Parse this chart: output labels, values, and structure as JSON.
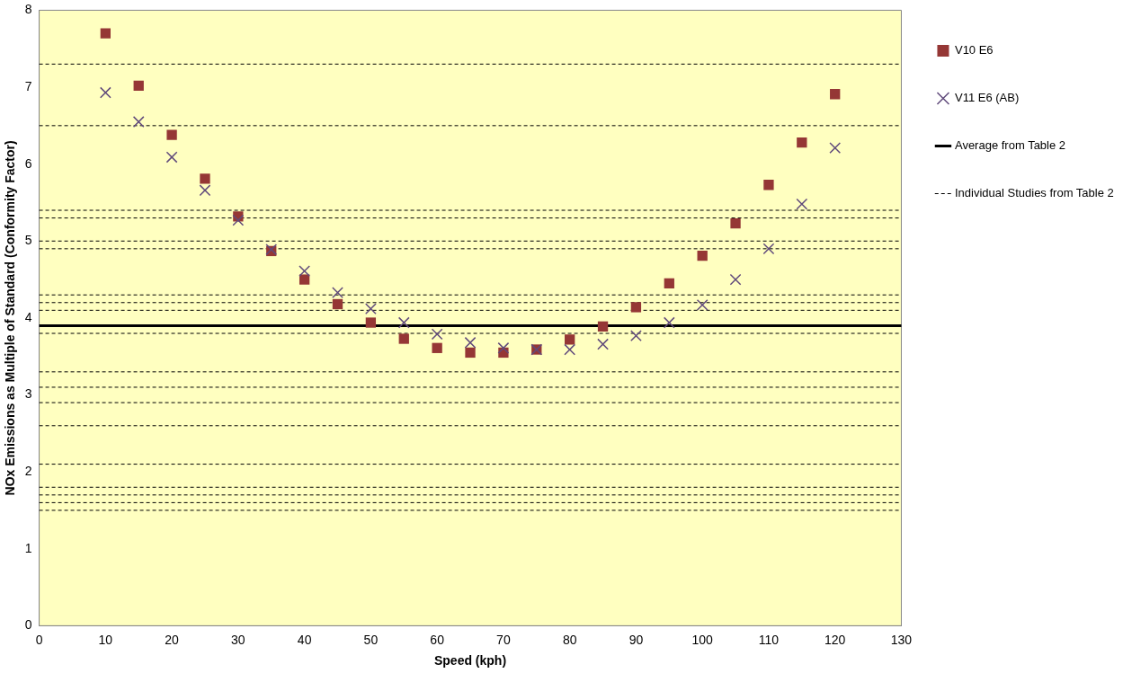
{
  "chart_data": {
    "type": "scatter",
    "xlabel": "Speed (kph)",
    "ylabel": "NOx Emissions as Multiple of Standard (Conformity Factor)",
    "x": [
      10,
      15,
      20,
      25,
      30,
      35,
      40,
      45,
      50,
      55,
      60,
      65,
      70,
      75,
      80,
      85,
      90,
      95,
      100,
      105,
      110,
      115,
      120
    ],
    "series": [
      {
        "name": "V10 E6",
        "color": "#953735",
        "marker": "square",
        "values": [
          7.7,
          7.02,
          6.38,
          5.81,
          5.32,
          4.87,
          4.5,
          4.18,
          3.94,
          3.73,
          3.61,
          3.55,
          3.55,
          3.59,
          3.72,
          3.89,
          4.14,
          4.45,
          4.81,
          5.23,
          5.73,
          6.28,
          6.91
        ]
      },
      {
        "name": "V11 E6 (AB)",
        "color": "#604a7b",
        "marker": "cross",
        "values": [
          6.93,
          6.55,
          6.09,
          5.66,
          5.27,
          4.89,
          4.61,
          4.33,
          4.12,
          3.94,
          3.79,
          3.68,
          3.61,
          3.59,
          3.59,
          3.66,
          3.77,
          3.94,
          4.17,
          4.5,
          4.9,
          5.48,
          6.21
        ]
      }
    ],
    "xlim": [
      0,
      130
    ],
    "xticks": [
      0,
      10,
      20,
      30,
      40,
      50,
      60,
      70,
      80,
      90,
      100,
      110,
      120,
      130
    ],
    "ylim": [
      0,
      8
    ],
    "yticks": [
      0,
      1,
      2,
      3,
      4,
      5,
      6,
      7,
      8
    ],
    "ref_lines": [
      {
        "axis": "y",
        "value": 3.9,
        "label": "Average from Table 2",
        "color": "#000000",
        "line_style": "solid"
      },
      {
        "axis": "y",
        "value": 7.3,
        "label": "Individual Studies from Table 2",
        "color": "#000000",
        "line_style": "dashed"
      },
      {
        "axis": "y",
        "value": 6.5,
        "color": "#000000",
        "line_style": "dashed"
      },
      {
        "axis": "y",
        "value": 5.4,
        "color": "#000000",
        "line_style": "dashed"
      },
      {
        "axis": "y",
        "value": 5.3,
        "color": "#000000",
        "line_style": "dashed"
      },
      {
        "axis": "y",
        "value": 5.0,
        "color": "#000000",
        "line_style": "dashed"
      },
      {
        "axis": "y",
        "value": 4.9,
        "color": "#000000",
        "line_style": "dashed"
      },
      {
        "axis": "y",
        "value": 4.3,
        "color": "#000000",
        "line_style": "dashed"
      },
      {
        "axis": "y",
        "value": 4.2,
        "color": "#000000",
        "line_style": "dashed"
      },
      {
        "axis": "y",
        "value": 4.1,
        "color": "#000000",
        "line_style": "dashed"
      },
      {
        "axis": "y",
        "value": 3.8,
        "color": "#000000",
        "line_style": "dashed"
      },
      {
        "axis": "y",
        "value": 3.3,
        "color": "#000000",
        "line_style": "dashed"
      },
      {
        "axis": "y",
        "value": 3.1,
        "color": "#000000",
        "line_style": "dashed"
      },
      {
        "axis": "y",
        "value": 2.9,
        "color": "#000000",
        "line_style": "dashed"
      },
      {
        "axis": "y",
        "value": 2.6,
        "color": "#000000",
        "line_style": "dashed"
      },
      {
        "axis": "y",
        "value": 2.1,
        "color": "#000000",
        "line_style": "dashed"
      },
      {
        "axis": "y",
        "value": 1.8,
        "color": "#000000",
        "line_style": "dashed"
      },
      {
        "axis": "y",
        "value": 1.7,
        "color": "#000000",
        "line_style": "dashed"
      },
      {
        "axis": "y",
        "value": 1.6,
        "color": "#000000",
        "line_style": "dashed"
      },
      {
        "axis": "y",
        "value": 1.5,
        "color": "#000000",
        "line_style": "dashed"
      }
    ],
    "grid": false,
    "legend": "right"
  }
}
